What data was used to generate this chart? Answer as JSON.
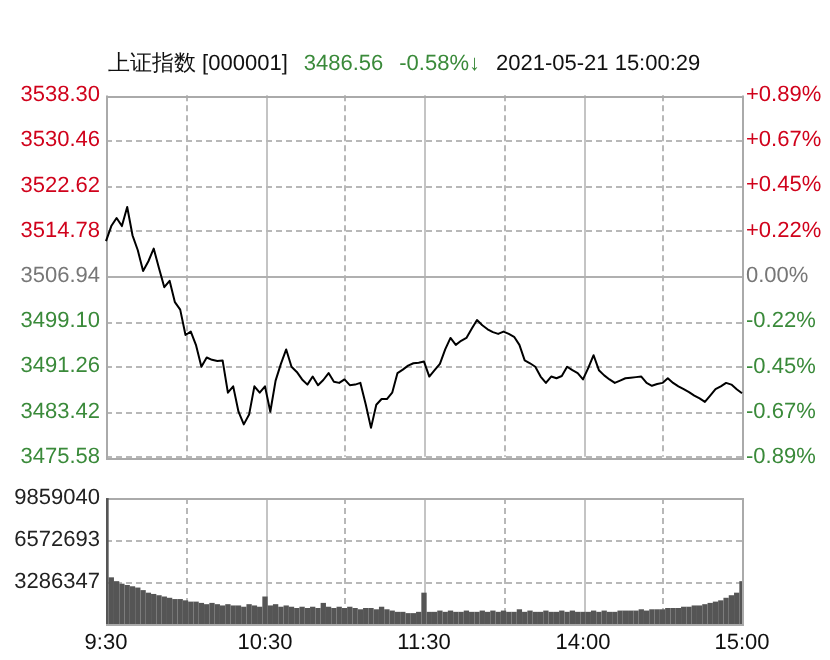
{
  "chart_data": [
    {
      "type": "line",
      "title": "上证指数 [000001]",
      "annotations": [
        "3486.56",
        "-0.58%↓",
        "2021-05-21 15:00:29"
      ],
      "color": "#000000",
      "categories": [
        null,
        null,
        null,
        null,
        null,
        null,
        null,
        null,
        null,
        null,
        null,
        null,
        null,
        null,
        null,
        null,
        null,
        null,
        null,
        null,
        null,
        null,
        null,
        null,
        null,
        null,
        null,
        null,
        null,
        null,
        null,
        null,
        null,
        null,
        null,
        null,
        null,
        null,
        null,
        null,
        null,
        null,
        null,
        null,
        null,
        null,
        null,
        null,
        null,
        null,
        null,
        null,
        null,
        null,
        null,
        null,
        null,
        null,
        null,
        null,
        null,
        null,
        null,
        null,
        null,
        null,
        null,
        null,
        null,
        null,
        null,
        null,
        null,
        null,
        null,
        null,
        null,
        null,
        null,
        null,
        null,
        null,
        null,
        null,
        null,
        null,
        null,
        null,
        null,
        null,
        null,
        null,
        null,
        null,
        null,
        null,
        null,
        null,
        null,
        null,
        null,
        null,
        null,
        null,
        null,
        null,
        null,
        null,
        null,
        null,
        null,
        null,
        null,
        null,
        null,
        null,
        null,
        null,
        null,
        null,
        null
      ],
      "values": [
        3513.0,
        3515.6,
        3517.0,
        3515.6,
        3518.9,
        3514.0,
        3511.4,
        3507.8,
        3509.5,
        3511.7,
        3508.3,
        3505.0,
        3506.1,
        3502.4,
        3501.1,
        3496.7,
        3497.3,
        3494.9,
        3491.2,
        3492.8,
        3492.4,
        3492.2,
        3492.3,
        3486.7,
        3487.8,
        3483.4,
        3481.2,
        3482.9,
        3487.8,
        3486.7,
        3487.8,
        3483.4,
        3488.8,
        3491.7,
        3494.2,
        3491.2,
        3490.3,
        3489.0,
        3488.1,
        3489.5,
        3488.0,
        3488.9,
        3490.1,
        3488.6,
        3488.4,
        3489.0,
        3488.0,
        3488.1,
        3488.4,
        3484.7,
        3480.6,
        3484.6,
        3485.6,
        3485.6,
        3486.7,
        3490.1,
        3490.7,
        3491.4,
        3491.8,
        3491.9,
        3492.1,
        3489.5,
        3490.6,
        3491.7,
        3494.2,
        3496.2,
        3495.0,
        3495.7,
        3496.2,
        3497.8,
        3499.3,
        3498.4,
        3497.7,
        3497.2,
        3496.9,
        3497.3,
        3496.9,
        3496.4,
        3495.0,
        3492.3,
        3491.8,
        3491.2,
        3489.5,
        3488.4,
        3489.5,
        3489.2,
        3489.6,
        3491.2,
        3490.6,
        3490.1,
        3489.0,
        3491.0,
        3493.2,
        3490.6,
        3489.7,
        3489.0,
        3488.4,
        3488.8,
        3489.2,
        3489.3,
        3489.4,
        3489.5,
        3488.4,
        3487.9,
        3488.2,
        3488.4,
        3489.2,
        3488.4,
        3487.8,
        3487.3,
        3486.8,
        3486.2,
        3485.7,
        3485.1,
        3486.2,
        3487.3,
        3487.8,
        3488.4,
        3488.1,
        3487.3,
        3486.6
      ],
      "ylim": [
        3475.58,
        3538.3
      ],
      "yticks": [
        {
          "value": 3475.58,
          "label": "3475.58"
        },
        {
          "value": 3483.42,
          "label": "3483.42"
        },
        {
          "value": 3491.26,
          "label": "3491.26"
        },
        {
          "value": 3499.1,
          "label": "3499.10"
        },
        {
          "value": 3506.94,
          "label": "3506.94"
        },
        {
          "value": 3514.78,
          "label": "3514.78"
        },
        {
          "value": 3522.62,
          "label": "3522.62"
        },
        {
          "value": 3530.46,
          "label": "3530.46"
        },
        {
          "value": 3538.3,
          "label": "3538.30"
        }
      ],
      "y2lim": [
        -0.89,
        0.89
      ],
      "y2ticks": [
        {
          "value": -0.89,
          "label": "-0.89%"
        },
        {
          "value": -0.67,
          "label": "-0.67%"
        },
        {
          "value": -0.45,
          "label": "-0.45%"
        },
        {
          "value": -0.22,
          "label": "-0.22%"
        },
        {
          "value": 0,
          "label": "0.00%"
        },
        {
          "value": 0.22,
          "label": "+0.22%"
        },
        {
          "value": 0.45,
          "label": "+0.45%"
        },
        {
          "value": 0.67,
          "label": "+0.67%"
        },
        {
          "value": 0.89,
          "label": "+0.89%"
        }
      ],
      "ref_lines": [
        {
          "axis": "y",
          "value": 3506.94,
          "color": "#b0b0b0"
        }
      ],
      "grid": true,
      "tick_labels": "y"
    },
    {
      "type": "bar",
      "color": "#555555",
      "categories": [
        "9:30",
        null,
        null,
        null,
        null,
        null,
        null,
        null,
        null,
        null,
        null,
        null,
        null,
        null,
        null,
        null,
        null,
        null,
        null,
        null,
        null,
        null,
        null,
        null,
        null,
        null,
        null,
        null,
        null,
        null,
        "10:30",
        null,
        null,
        null,
        null,
        null,
        null,
        null,
        null,
        null,
        null,
        null,
        null,
        null,
        null,
        null,
        null,
        null,
        null,
        null,
        null,
        null,
        null,
        null,
        null,
        null,
        null,
        null,
        null,
        null,
        "11:30",
        null,
        null,
        null,
        null,
        null,
        null,
        null,
        null,
        null,
        null,
        null,
        null,
        null,
        null,
        null,
        null,
        null,
        null,
        null,
        null,
        null,
        null,
        null,
        null,
        null,
        null,
        null,
        null,
        null,
        "14:00",
        null,
        null,
        null,
        null,
        null,
        null,
        null,
        null,
        null,
        null,
        null,
        null,
        null,
        null,
        null,
        null,
        null,
        null,
        null,
        null,
        null,
        null,
        null,
        null,
        null,
        null,
        null,
        null,
        null,
        "15:00"
      ],
      "values": [
        9800000,
        3600000,
        3300000,
        3100000,
        3000000,
        2900000,
        2800000,
        2600000,
        2400000,
        2300000,
        2200000,
        2100000,
        2000000,
        1900000,
        1900000,
        1800000,
        1700000,
        1700000,
        1600000,
        1500000,
        1600000,
        1500000,
        1400000,
        1500000,
        1400000,
        1400000,
        1300000,
        1500000,
        1400000,
        1300000,
        2100000,
        1400000,
        1500000,
        1300000,
        1400000,
        1300000,
        1200000,
        1300000,
        1200000,
        1300000,
        1200000,
        1600000,
        1300000,
        1200000,
        1300000,
        1200000,
        1300000,
        1200000,
        1100000,
        1200000,
        1200000,
        1100000,
        1300000,
        1100000,
        1000000,
        900000,
        900000,
        800000,
        800000,
        900000,
        2400000,
        900000,
        900000,
        1000000,
        900000,
        1000000,
        900000,
        900000,
        1000000,
        900000,
        900000,
        1000000,
        900000,
        1000000,
        900000,
        1000000,
        900000,
        900000,
        1100000,
        900000,
        1000000,
        900000,
        900000,
        1000000,
        900000,
        900000,
        1000000,
        900000,
        1000000,
        900000,
        900000,
        900000,
        1000000,
        900000,
        1000000,
        900000,
        900000,
        1000000,
        1000000,
        1000000,
        1000000,
        1100000,
        1000000,
        1100000,
        1100000,
        1100000,
        1200000,
        1200000,
        1200000,
        1300000,
        1300000,
        1400000,
        1400000,
        1500000,
        1600000,
        1700000,
        1800000,
        2000000,
        2200000,
        2400000,
        3300000
      ],
      "ylim": [
        0,
        9859040
      ],
      "yticks": [
        {
          "value": 0,
          "label": null
        },
        3286347,
        6572693,
        9859040
      ],
      "grid": true
    }
  ]
}
